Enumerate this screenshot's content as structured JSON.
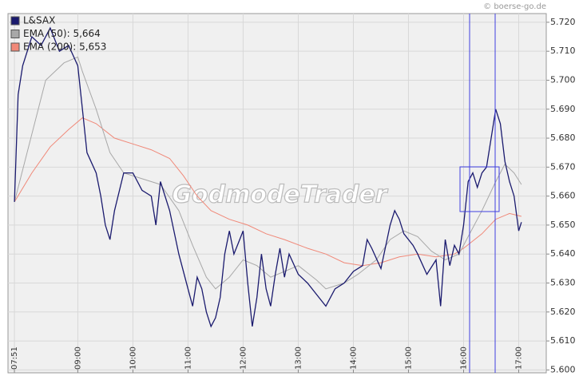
{
  "chart_data": {
    "type": "line",
    "copyright": "© boerse-go.de",
    "watermark": "GodmodeTrader",
    "xlim": [
      "07:44",
      "17:30"
    ],
    "xticks": [
      "07:51",
      "09:00",
      "10:00",
      "11:00",
      "12:00",
      "13:00",
      "14:00",
      "15:00",
      "16:00",
      "17:00"
    ],
    "ylim": [
      5.599,
      5.723
    ],
    "yticks": [
      {
        "value": 5.6,
        "label": "5.600"
      },
      {
        "value": 5.61,
        "label": "5.610"
      },
      {
        "value": 5.62,
        "label": "5.620"
      },
      {
        "value": 5.63,
        "label": "5.630"
      },
      {
        "value": 5.64,
        "label": "5.640"
      },
      {
        "value": 5.65,
        "label": "5.650"
      },
      {
        "value": 5.66,
        "label": "5.660"
      },
      {
        "value": 5.67,
        "label": "5.670"
      },
      {
        "value": 5.68,
        "label": "5.680"
      },
      {
        "value": 5.69,
        "label": "5.690"
      },
      {
        "value": 5.7,
        "label": "5.700"
      },
      {
        "value": 5.71,
        "label": "5.710"
      },
      {
        "value": 5.72,
        "label": "5.720"
      }
    ],
    "grid": true,
    "legend": "top-left",
    "series": [
      {
        "name": "L&SAX",
        "color": "#1a1a6e",
        "x": [
          "07:51",
          "07:55",
          "08:00",
          "08:10",
          "08:20",
          "08:30",
          "08:40",
          "08:50",
          "09:00",
          "09:05",
          "09:10",
          "09:20",
          "09:25",
          "09:30",
          "09:35",
          "09:40",
          "09:50",
          "10:00",
          "10:10",
          "10:20",
          "10:25",
          "10:30",
          "10:40",
          "10:50",
          "11:00",
          "11:05",
          "11:10",
          "11:15",
          "11:20",
          "11:25",
          "11:30",
          "11:35",
          "11:40",
          "11:45",
          "11:50",
          "11:55",
          "12:00",
          "12:05",
          "12:10",
          "12:15",
          "12:20",
          "12:25",
          "12:30",
          "12:35",
          "12:40",
          "12:45",
          "12:50",
          "13:00",
          "13:10",
          "13:20",
          "13:30",
          "13:40",
          "13:50",
          "14:00",
          "14:10",
          "14:15",
          "14:20",
          "14:30",
          "14:40",
          "14:45",
          "14:50",
          "14:55",
          "15:00",
          "15:05",
          "15:10",
          "15:20",
          "15:30",
          "15:35",
          "15:40",
          "15:45",
          "15:50",
          "15:55",
          "16:00",
          "16:05",
          "16:10",
          "16:15",
          "16:20",
          "16:25",
          "16:30",
          "16:35",
          "16:40",
          "16:45",
          "16:50",
          "16:55",
          "17:00",
          "17:03"
        ],
        "values": [
          5.658,
          5.695,
          5.705,
          5.715,
          5.712,
          5.718,
          5.71,
          5.712,
          5.705,
          5.69,
          5.675,
          5.668,
          5.66,
          5.65,
          5.645,
          5.655,
          5.668,
          5.668,
          5.662,
          5.66,
          5.65,
          5.665,
          5.655,
          5.64,
          5.628,
          5.622,
          5.632,
          5.628,
          5.62,
          5.615,
          5.618,
          5.625,
          5.64,
          5.648,
          5.64,
          5.644,
          5.648,
          5.63,
          5.615,
          5.625,
          5.64,
          5.628,
          5.622,
          5.633,
          5.642,
          5.632,
          5.64,
          5.633,
          5.63,
          5.626,
          5.622,
          5.628,
          5.63,
          5.634,
          5.636,
          5.645,
          5.642,
          5.635,
          5.65,
          5.655,
          5.652,
          5.647,
          5.645,
          5.643,
          5.64,
          5.633,
          5.638,
          5.622,
          5.645,
          5.636,
          5.643,
          5.64,
          5.65,
          5.665,
          5.668,
          5.663,
          5.668,
          5.67,
          5.68,
          5.69,
          5.685,
          5.672,
          5.665,
          5.66,
          5.648,
          5.651
        ]
      },
      {
        "name": "EMA (50): 5,664",
        "color": "#a8a8a8",
        "x": [
          "07:51",
          "08:25",
          "08:45",
          "09:00",
          "09:05",
          "09:20",
          "09:35",
          "09:50",
          "10:10",
          "10:30",
          "10:50",
          "11:05",
          "11:20",
          "11:30",
          "11:45",
          "12:00",
          "12:15",
          "12:30",
          "12:45",
          "13:00",
          "13:20",
          "13:30",
          "13:50",
          "14:05",
          "14:25",
          "14:40",
          "14:55",
          "15:10",
          "15:25",
          "15:40",
          "15:55",
          "16:05",
          "16:20",
          "16:35",
          "16:45",
          "16:55",
          "17:03"
        ],
        "values": [
          5.658,
          5.7,
          5.706,
          5.708,
          5.703,
          5.69,
          5.675,
          5.668,
          5.666,
          5.664,
          5.655,
          5.643,
          5.632,
          5.628,
          5.632,
          5.638,
          5.636,
          5.632,
          5.634,
          5.636,
          5.631,
          5.628,
          5.63,
          5.633,
          5.638,
          5.645,
          5.648,
          5.646,
          5.641,
          5.638,
          5.64,
          5.646,
          5.655,
          5.665,
          5.671,
          5.668,
          5.664
        ]
      },
      {
        "name": "EMA (200): 5,653",
        "color": "#f08878",
        "x": [
          "07:51",
          "08:10",
          "08:30",
          "08:50",
          "09:05",
          "09:20",
          "09:40",
          "10:00",
          "10:20",
          "10:40",
          "10:55",
          "11:10",
          "11:25",
          "11:45",
          "12:05",
          "12:25",
          "12:45",
          "13:10",
          "13:30",
          "13:50",
          "14:10",
          "14:30",
          "14:50",
          "15:10",
          "15:30",
          "15:50",
          "16:00",
          "16:20",
          "16:35",
          "16:50",
          "17:03"
        ],
        "values": [
          5.658,
          5.668,
          5.677,
          5.683,
          5.687,
          5.685,
          5.68,
          5.678,
          5.676,
          5.673,
          5.667,
          5.66,
          5.655,
          5.652,
          5.65,
          5.647,
          5.645,
          5.642,
          5.64,
          5.637,
          5.636,
          5.637,
          5.639,
          5.64,
          5.639,
          5.64,
          5.642,
          5.647,
          5.652,
          5.654,
          5.653
        ]
      }
    ]
  }
}
